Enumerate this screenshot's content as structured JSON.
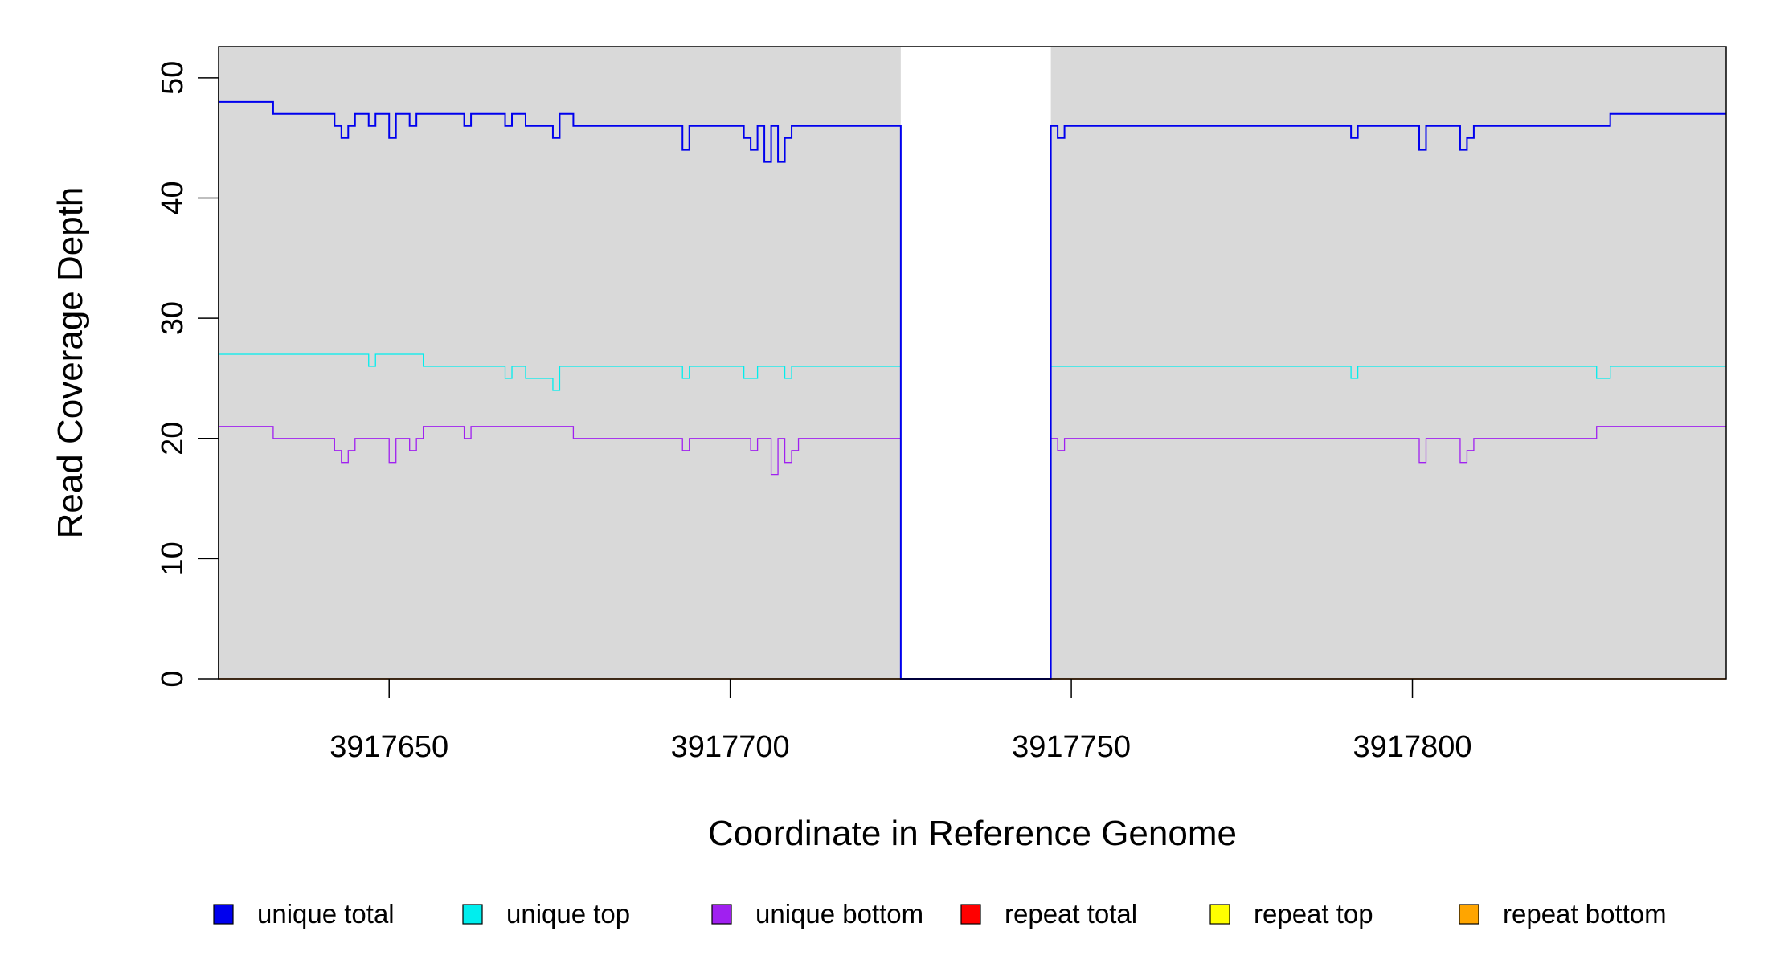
{
  "chart_data": {
    "type": "line",
    "title": "",
    "xlabel": "Coordinate in Reference Genome",
    "ylabel": "Read Coverage Depth",
    "xlim": [
      3917625,
      3917846
    ],
    "ylim": [
      0,
      50
    ],
    "y_ticks": [
      0,
      10,
      20,
      30,
      40,
      50
    ],
    "x_ticks": [
      3917650,
      3917700,
      3917750,
      3917800
    ],
    "x_tick_labels": [
      "3917650",
      "3917700",
      "3917750",
      "3917800"
    ],
    "y_tick_labels": [
      "0",
      "10",
      "20",
      "30",
      "40",
      "50"
    ],
    "grid": false,
    "shaded_regions": [
      {
        "from": 3917625,
        "to": 3917725,
        "color": "#d9d9d9"
      },
      {
        "from": 3917747,
        "to": 3917846,
        "color": "#d9d9d9"
      }
    ],
    "legend_position": "bottom",
    "series": [
      {
        "name": "unique total",
        "color": "#0000ee",
        "width": 2,
        "points": [
          [
            3917625,
            48
          ],
          [
            3917633,
            47
          ],
          [
            3917642,
            46
          ],
          [
            3917643,
            45
          ],
          [
            3917644,
            46
          ],
          [
            3917645,
            47
          ],
          [
            3917647,
            46
          ],
          [
            3917648,
            47
          ],
          [
            3917650,
            45
          ],
          [
            3917651,
            47
          ],
          [
            3917653,
            46
          ],
          [
            3917654,
            47
          ],
          [
            3917661,
            46
          ],
          [
            3917662,
            47
          ],
          [
            3917667,
            46
          ],
          [
            3917668,
            47
          ],
          [
            3917670,
            46
          ],
          [
            3917674,
            45
          ],
          [
            3917675,
            47
          ],
          [
            3917677,
            46
          ],
          [
            3917693,
            44
          ],
          [
            3917694,
            46
          ],
          [
            3917702,
            45
          ],
          [
            3917703,
            44
          ],
          [
            3917704,
            46
          ],
          [
            3917705,
            43
          ],
          [
            3917706,
            46
          ],
          [
            3917707,
            43
          ],
          [
            3917708,
            45
          ],
          [
            3917709,
            46
          ],
          [
            3917725,
            0
          ],
          [
            3917747,
            46
          ],
          [
            3917748,
            45
          ],
          [
            3917749,
            46
          ],
          [
            3917791,
            45
          ],
          [
            3917792,
            46
          ],
          [
            3917801,
            44
          ],
          [
            3917802,
            46
          ],
          [
            3917807,
            44
          ],
          [
            3917808,
            45
          ],
          [
            3917809,
            46
          ],
          [
            3917829,
            47
          ],
          [
            3917846,
            47
          ]
        ]
      },
      {
        "name": "unique top",
        "color": "#00eeee",
        "width": 1.3,
        "points": [
          [
            3917625,
            27
          ],
          [
            3917647,
            26
          ],
          [
            3917648,
            27
          ],
          [
            3917655,
            26
          ],
          [
            3917667,
            25
          ],
          [
            3917668,
            26
          ],
          [
            3917670,
            25
          ],
          [
            3917674,
            24
          ],
          [
            3917675,
            26
          ],
          [
            3917693,
            25
          ],
          [
            3917694,
            26
          ],
          [
            3917702,
            25
          ],
          [
            3917704,
            26
          ],
          [
            3917708,
            25
          ],
          [
            3917709,
            26
          ],
          [
            3917725,
            0
          ],
          [
            3917747,
            26
          ],
          [
            3917791,
            25
          ],
          [
            3917792,
            26
          ],
          [
            3917827,
            25
          ],
          [
            3917829,
            26
          ],
          [
            3917846,
            26
          ]
        ]
      },
      {
        "name": "unique bottom",
        "color": "#a020f0",
        "width": 1.3,
        "points": [
          [
            3917625,
            21
          ],
          [
            3917633,
            20
          ],
          [
            3917642,
            19
          ],
          [
            3917643,
            18
          ],
          [
            3917644,
            19
          ],
          [
            3917645,
            20
          ],
          [
            3917650,
            18
          ],
          [
            3917651,
            20
          ],
          [
            3917653,
            19
          ],
          [
            3917654,
            20
          ],
          [
            3917655,
            21
          ],
          [
            3917661,
            20
          ],
          [
            3917662,
            21
          ],
          [
            3917677,
            20
          ],
          [
            3917693,
            19
          ],
          [
            3917694,
            20
          ],
          [
            3917703,
            19
          ],
          [
            3917704,
            20
          ],
          [
            3917706,
            17
          ],
          [
            3917707,
            20
          ],
          [
            3917708,
            18
          ],
          [
            3917709,
            19
          ],
          [
            3917710,
            20
          ],
          [
            3917725,
            0
          ],
          [
            3917747,
            20
          ],
          [
            3917748,
            19
          ],
          [
            3917749,
            20
          ],
          [
            3917801,
            18
          ],
          [
            3917802,
            20
          ],
          [
            3917807,
            18
          ],
          [
            3917808,
            19
          ],
          [
            3917809,
            20
          ],
          [
            3917827,
            21
          ],
          [
            3917846,
            21
          ]
        ]
      },
      {
        "name": "repeat total",
        "color": "#ff0000",
        "width": 1.3,
        "points": [
          [
            3917625,
            0
          ],
          [
            3917846,
            0
          ]
        ]
      },
      {
        "name": "repeat top",
        "color": "#ffff00",
        "width": 1.3,
        "points": [
          [
            3917625,
            0
          ],
          [
            3917846,
            0
          ]
        ]
      },
      {
        "name": "repeat bottom",
        "color": "#ffa500",
        "width": 1.3,
        "points": [
          [
            3917625,
            0
          ],
          [
            3917846,
            0
          ]
        ]
      }
    ]
  }
}
